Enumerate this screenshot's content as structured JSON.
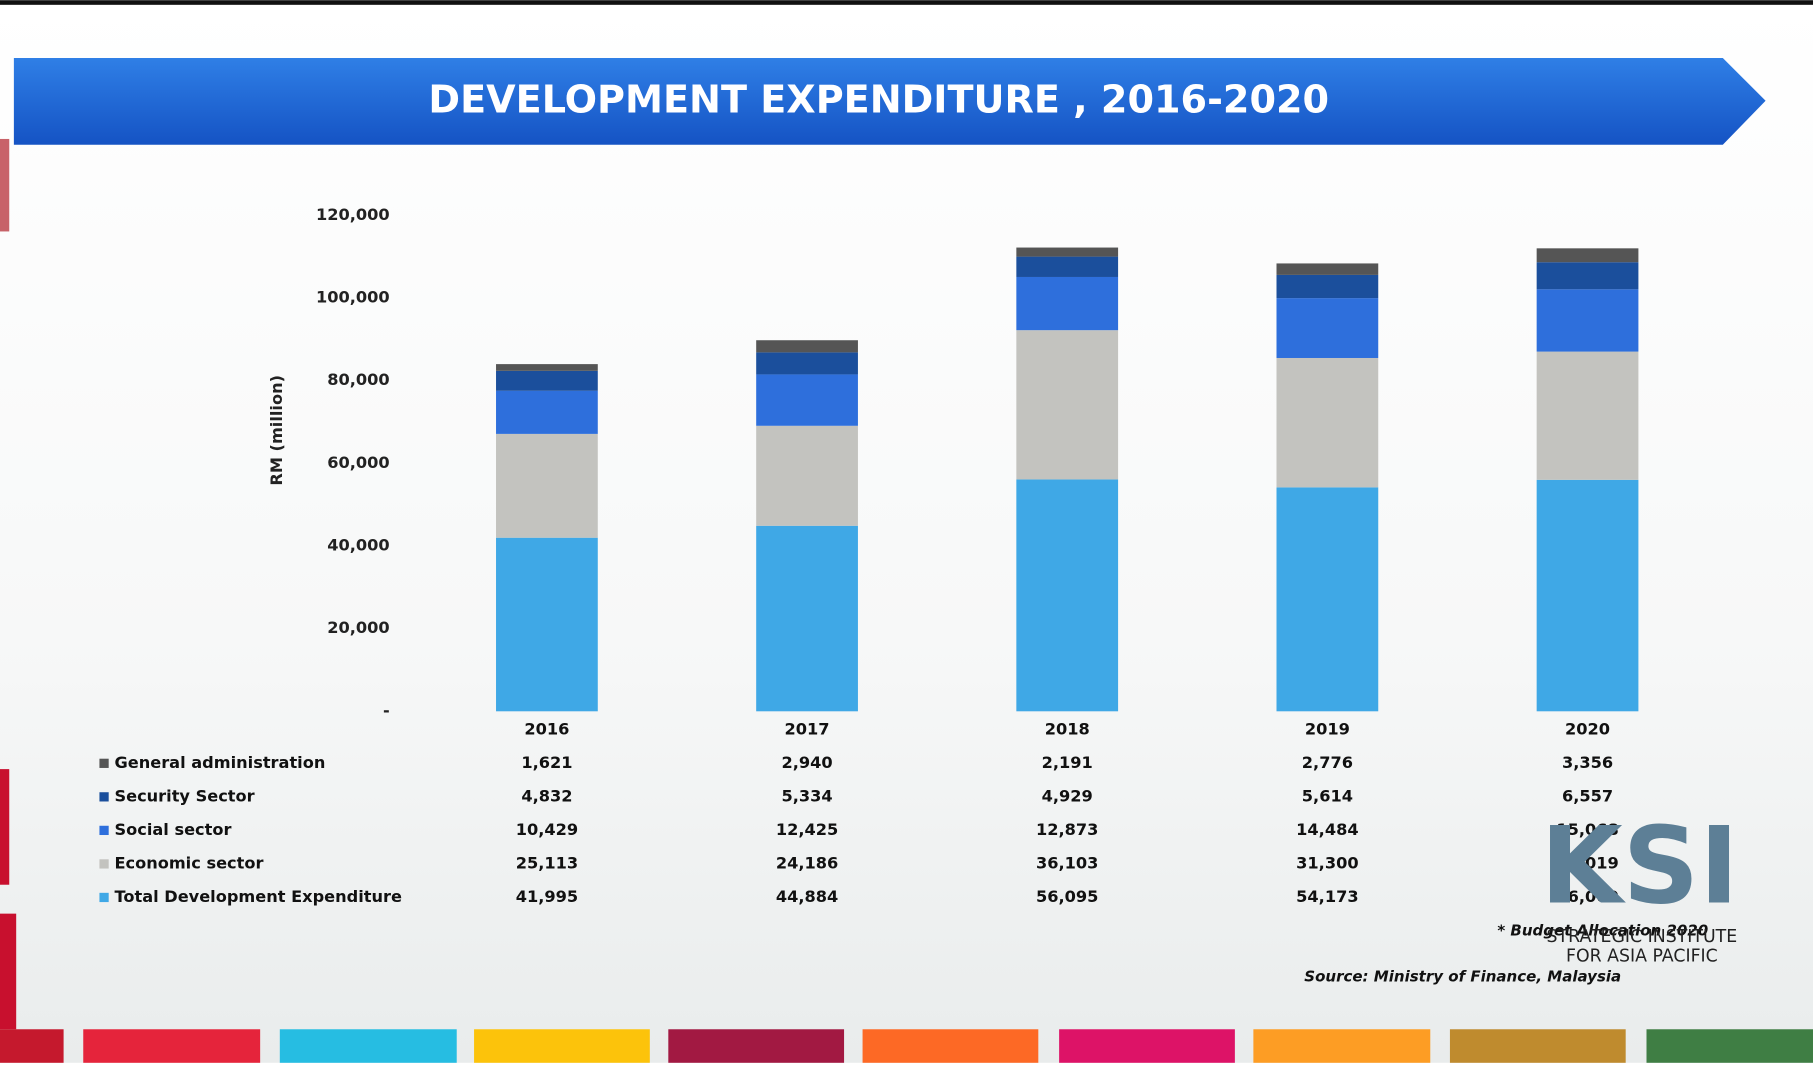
{
  "chart_data": {
    "type": "bar",
    "stacked": true,
    "title": "DEVELOPMENT EXPENDITURE , 2016-2020",
    "y_label": "RM (million)",
    "categories": [
      "2016",
      "2017",
      "2018",
      "2019",
      "2020"
    ],
    "series": [
      {
        "name": "Total Development Expenditure",
        "color": "#3fa8e6",
        "values": [
          41995,
          44884,
          56095,
          54173,
          56000
        ],
        "value_labels": [
          "41,995",
          "44,884",
          "56,095",
          "54,173",
          "56,000"
        ]
      },
      {
        "name": "Economic sector",
        "color": "#c3c3bf",
        "values": [
          25113,
          24186,
          36103,
          31300,
          31019
        ],
        "value_labels": [
          "25,113",
          "24,186",
          "36,103",
          "31,300",
          "31,019"
        ]
      },
      {
        "name": "Social sector",
        "color": "#2e6fdc",
        "values": [
          10429,
          12425,
          12873,
          14484,
          15068
        ],
        "value_labels": [
          "10,429",
          "12,425",
          "12,873",
          "14,484",
          "15,068"
        ]
      },
      {
        "name": "Security Sector",
        "color": "#1b4f9c",
        "values": [
          4832,
          5334,
          4929,
          5614,
          6557
        ],
        "value_labels": [
          "4,832",
          "5,334",
          "4,929",
          "5,614",
          "6,557"
        ]
      },
      {
        "name": "General administration",
        "color": "#555555",
        "values": [
          1621,
          2940,
          2191,
          2776,
          3356
        ],
        "value_labels": [
          "1,621",
          "2,940",
          "2,191",
          "2,776",
          "3,356"
        ]
      }
    ],
    "ylim": [
      0,
      120000
    ],
    "yticks": [
      {
        "value": 0,
        "label": "-"
      },
      {
        "value": 20000,
        "label": "20,000"
      },
      {
        "value": 40000,
        "label": "40,000"
      },
      {
        "value": 60000,
        "label": "60,000"
      },
      {
        "value": 80000,
        "label": "80,000"
      },
      {
        "value": 100000,
        "label": "100,000"
      },
      {
        "value": 120000,
        "label": "120,000"
      }
    ],
    "grid": false,
    "annotations": [
      "* Budget Allocation 2020",
      "Source: Ministry of Finance, Malaysia"
    ]
  },
  "logo": {
    "mark": "KSI",
    "line1": "STRATEGIC INSTITUTE",
    "line2": "FOR ASIA PACIFIC"
  }
}
